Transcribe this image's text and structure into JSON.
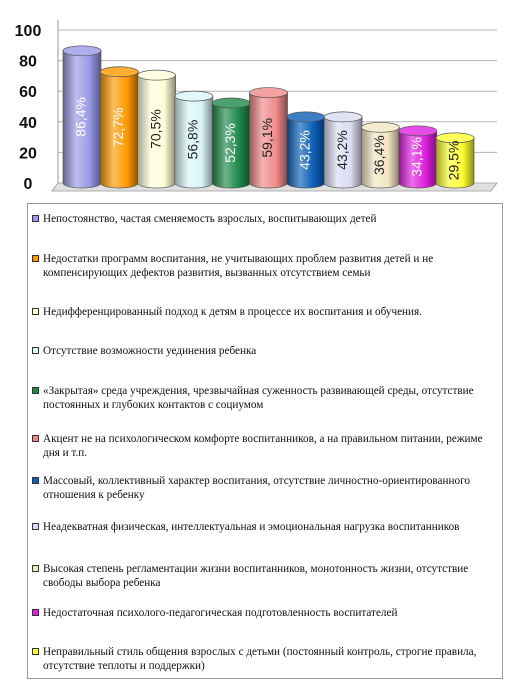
{
  "chart_data": {
    "type": "bar",
    "title": "",
    "xlabel": "",
    "ylabel": "",
    "ylim": [
      0,
      100
    ],
    "yticks": [
      0,
      20,
      40,
      60,
      80,
      100
    ],
    "grid": true,
    "legend_position": "bottom",
    "categories": [
      "Непостоянство, частая сменяемость взрослых, воспитывающих детей",
      "Недостатки программ воспитания, не учитывающих проблем развития детей и не компенсирующих дефектов развития, вызванных отсутствием семьи",
      "Недифференцированный подход к детям в процессе их воспитания и обучения.",
      "Отсутствие возможности уединения ребенка",
      "«Закрытая» среда учреждения, чрезвычайная суженность развивающей среды, отсутствие постоянных и глубоких контактов с социумом",
      "Акцент не на психологическом комфорте воспитанников, а на правильном питании, режиме дня и т.п.",
      "Массовый, коллективный характер воспитания, отсутствие личностно-ориентированного отношения к ребенку",
      "Неадекватная физическая, интеллектуальная и эмоциональная нагрузка воспитанников",
      "Высокая степень регламентации жизни воспитанников, монотонность жизни, отсутствие свободы выбора ребенка",
      "Недостаточная психолого-педагогическая подготовленность воспитателей",
      "Неправильный стиль общения взрослых с детьми (постоянный контроль, строгие правила, отсутствие теплоты и поддержки)"
    ],
    "values": [
      86.4,
      72.7,
      70.5,
      56.8,
      52.3,
      59.1,
      43.2,
      43.2,
      36.4,
      34.1,
      29.5
    ],
    "data_labels": [
      "86,4%",
      "72,7%",
      "70,5%",
      "56,8%",
      "52,3%",
      "59,1%",
      "43,2%",
      "43,2%",
      "36,4%",
      "34,1%",
      "29,5%"
    ],
    "colors": [
      "#9a9ae8",
      "#ff9900",
      "#ffffd9",
      "#d9f5f8",
      "#1f8a4c",
      "#f08a8a",
      "#0b5fb8",
      "#dcdcf4",
      "#f3e6c2",
      "#e020e0",
      "#ffff33"
    ],
    "label_colors": [
      "#ffffff",
      "#ffffff",
      "#222222",
      "#222222",
      "#ffffff",
      "#222222",
      "#ffffff",
      "#222222",
      "#222222",
      "#ffffff",
      "#222222"
    ]
  }
}
